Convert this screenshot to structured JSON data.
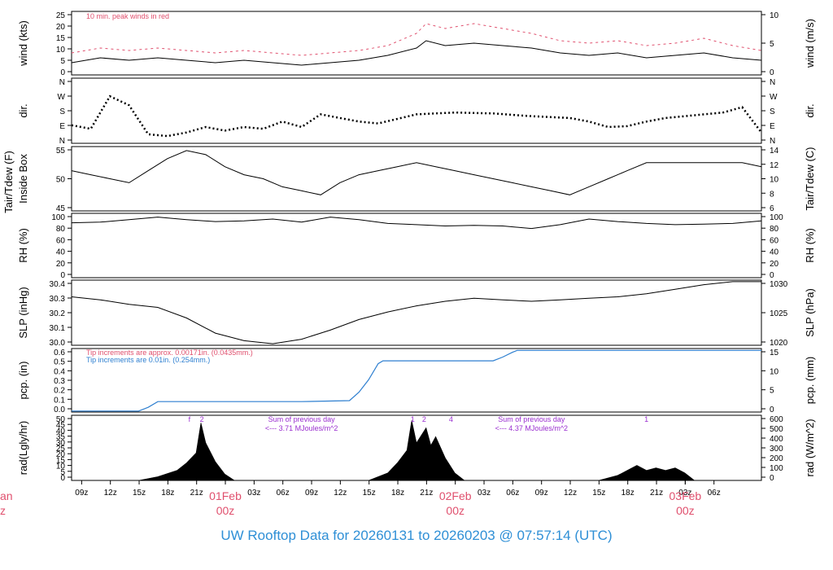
{
  "colors": {
    "axis": "#000000",
    "peak": "#e0506e",
    "precip_blue": "#2e7fd0",
    "solar_purple": "#9a2fd0",
    "date_red": "#e0506e",
    "caption_blue": "#2e8fd6",
    "trace": "#000000"
  },
  "caption": "UW Rooftop Data for 20260131  to  20260203 @ 07:57:14  (UTC)",
  "chart_data": {
    "type": "line",
    "x_unit": "hours",
    "x_start": "2026-01-31 07:57 UTC",
    "x_end": "2026-02-03 07:57 UTC",
    "x_ticks": [
      "09z",
      "12z",
      "15z",
      "18z",
      "21z",
      "03z",
      "06z",
      "09z",
      "12z",
      "15z",
      "18z",
      "21z",
      "03z",
      "06z",
      "09z",
      "12z",
      "15z",
      "18z",
      "21z",
      "03z",
      "06z"
    ],
    "day_labels": [
      {
        "date": "01Feb",
        "time": "00z"
      },
      {
        "date": "02Feb",
        "time": "00z"
      },
      {
        "date": "03Feb",
        "time": "00z"
      }
    ],
    "edge_label_left_top": "an",
    "edge_label_left_bottom": "z",
    "panels": [
      {
        "id": "wind",
        "ylabel_left": "wind (kts)",
        "ylabel_right": "wind (m/s)",
        "ylim": [
          0,
          26
        ],
        "left_ticks": [
          "0",
          "5",
          "10",
          "15",
          "20",
          "25"
        ],
        "right_ticks": [
          "0",
          "5",
          "10"
        ],
        "annotation": "10 min. peak winds in red",
        "series": [
          {
            "name": "wind",
            "x": [
              0,
              3,
              6,
              9,
              12,
              15,
              18,
              21,
              24,
              27,
              30,
              33,
              36,
              37,
              39,
              42,
              45,
              48,
              51,
              54,
              57,
              60,
              63,
              66,
              69,
              72
            ],
            "y": [
              5,
              7,
              6,
              7,
              6,
              5,
              6,
              5,
              4,
              5,
              6,
              8,
              11,
              14,
              12,
              13,
              12,
              11,
              9,
              8,
              9,
              7,
              8,
              9,
              7,
              6
            ]
          },
          {
            "name": "peak",
            "x": [
              0,
              3,
              6,
              9,
              12,
              15,
              18,
              21,
              24,
              27,
              30,
              33,
              36,
              37,
              39,
              42,
              45,
              48,
              51,
              54,
              57,
              60,
              63,
              66,
              69,
              72
            ],
            "y": [
              9,
              11,
              10,
              11,
              10,
              9,
              10,
              9,
              8,
              9,
              10,
              12,
              17,
              21,
              19,
              21,
              19,
              17,
              14,
              13,
              14,
              12,
              13,
              15,
              12,
              10
            ]
          }
        ]
      },
      {
        "id": "dir",
        "ylabel_left": "dir.",
        "ylabel_right": "dir.",
        "ylim": [
          0,
          360
        ],
        "left_ticks": [
          "N",
          "E",
          "S",
          "W",
          "N"
        ],
        "right_ticks": [
          "N",
          "E",
          "S",
          "W",
          "N"
        ],
        "series": [
          {
            "name": "direction",
            "x": [
              0,
              2,
              4,
              6,
              8,
              10,
              12,
              14,
              16,
              18,
              20,
              22,
              24,
              26,
              28,
              30,
              32,
              36,
              40,
              44,
              48,
              52,
              54,
              56,
              58,
              60,
              62,
              64,
              66,
              68,
              70,
              72
            ],
            "y": [
              100,
              80,
              260,
              210,
              50,
              40,
              60,
              90,
              70,
              90,
              80,
              120,
              90,
              160,
              140,
              120,
              110,
              160,
              170,
              165,
              150,
              140,
              120,
              90,
              95,
              120,
              140,
              150,
              160,
              170,
              200,
              60
            ]
          }
        ]
      },
      {
        "id": "temp",
        "ylabel_left": "Tair/Tdew (F)",
        "ylabel_left2": "Inside Box",
        "ylabel_right": "Tair/Tdew (C)",
        "ylim": [
          42,
          58
        ],
        "left_ticks": [
          "45",
          "50",
          "55"
        ],
        "right_ticks": [
          "6",
          "8",
          "10",
          "12",
          "14"
        ],
        "series": [
          {
            "name": "temperature",
            "x": [
              0,
              2,
              4,
              6,
              8,
              10,
              12,
              14,
              16,
              18,
              20,
              22,
              24,
              26,
              28,
              30,
              32,
              34,
              36,
              38,
              40,
              42,
              44,
              46,
              48,
              50,
              52,
              54,
              56,
              58,
              60,
              62,
              64,
              66,
              68,
              70,
              72
            ],
            "y": [
              52,
              51,
              50,
              49,
              52,
              55,
              57,
              56,
              53,
              51,
              50,
              48,
              47,
              46,
              49,
              51,
              52,
              53,
              54,
              53,
              52,
              51,
              50,
              49,
              48,
              47,
              46,
              48,
              50,
              52,
              54,
              54,
              54,
              54,
              54,
              54,
              53
            ]
          }
        ]
      },
      {
        "id": "rh",
        "ylabel_left": "RH (%)",
        "ylabel_right": "RH (%)",
        "ylim": [
          0,
          102
        ],
        "left_ticks": [
          "0",
          "20",
          "40",
          "60",
          "80",
          "100"
        ],
        "right_ticks": [
          "0",
          "20",
          "40",
          "60",
          "80",
          "100"
        ],
        "series": [
          {
            "name": "rh",
            "x": [
              0,
              3,
              6,
              9,
              12,
              15,
              18,
              21,
              24,
              27,
              30,
              33,
              36,
              39,
              42,
              45,
              48,
              51,
              54,
              57,
              60,
              63,
              66,
              69,
              72
            ],
            "y": [
              87,
              88,
              92,
              96,
              92,
              89,
              90,
              93,
              88,
              96,
              92,
              86,
              84,
              82,
              83,
              82,
              78,
              84,
              93,
              89,
              86,
              84,
              85,
              86,
              90
            ]
          }
        ]
      },
      {
        "id": "slp",
        "ylabel_left": "SLP (inHg)",
        "ylabel_right": "SLP (hPa)",
        "ylim": [
          29.99,
          30.42
        ],
        "left_ticks": [
          "30.0",
          "30.1",
          "30.2",
          "30.3",
          "30.4"
        ],
        "right_ticks": [
          "1020",
          "1025",
          "1030"
        ],
        "series": [
          {
            "name": "slp",
            "x": [
              0,
              3,
              6,
              9,
              12,
              15,
              18,
              21,
              24,
              27,
              30,
              33,
              36,
              39,
              42,
              45,
              48,
              51,
              54,
              57,
              60,
              63,
              66,
              69,
              72
            ],
            "y": [
              30.31,
              30.29,
              30.26,
              30.24,
              30.17,
              30.07,
              30.02,
              30.0,
              30.03,
              30.09,
              30.16,
              30.21,
              30.25,
              30.28,
              30.3,
              30.29,
              30.28,
              30.29,
              30.3,
              30.31,
              30.33,
              30.36,
              30.39,
              30.41,
              30.41
            ]
          }
        ]
      },
      {
        "id": "pcp",
        "ylabel_left": "pcp. (in)",
        "ylabel_right": "pcp. (mm)",
        "ylim": [
          -0.01,
          0.66
        ],
        "left_ticks": [
          "0.0",
          "0.1",
          "0.2",
          "0.3",
          "0.4",
          "0.5",
          "0.6"
        ],
        "right_ticks": [
          "0",
          "5",
          "10",
          "15"
        ],
        "notes": [
          "Tip increments are approx. 0.00171in. (0.0435mm.)",
          "Tip increments are 0.01in. (0.254mm.)"
        ],
        "series": [
          {
            "name": "precip",
            "x": [
              0,
              7,
              8,
              9,
              10,
              24,
              29,
              30,
              31,
              32,
              32.5,
              33,
              34,
              44,
              45,
              46,
              46.5,
              47,
              72
            ],
            "y": [
              0,
              0,
              0.04,
              0.1,
              0.1,
              0.1,
              0.11,
              0.2,
              0.33,
              0.5,
              0.53,
              0.53,
              0.53,
              0.53,
              0.57,
              0.62,
              0.64,
              0.64,
              0.64
            ]
          }
        ]
      },
      {
        "id": "rad",
        "ylabel_left": "rad(Lgly/hr)",
        "ylabel_right": "rad (W/m^2)",
        "ylim": [
          0,
          52
        ],
        "left_ticks": [
          "0",
          "5",
          "10",
          "15",
          "20",
          "25",
          "30",
          "35",
          "40",
          "45",
          "50"
        ],
        "right_ticks": [
          "0",
          "100",
          "200",
          "300",
          "400",
          "500",
          "600"
        ],
        "annotations": [
          {
            "text": "Sum of previous day",
            "text2": "<--- 3.71 MJoules/m^2"
          },
          {
            "text": "Sum of previous day",
            "text2": "<--- 4.37 MJoules/m^2"
          }
        ],
        "marks": [
          "f",
          "2",
          "1",
          "2",
          "4",
          "1"
        ],
        "series": [
          {
            "name": "solar",
            "x": [
              7,
              9,
              11,
              12,
              13,
              13.5,
              14,
              15,
              16,
              17,
              31,
              33,
              34,
              35,
              35.5,
              36,
              37,
              37.5,
              38,
              39,
              40,
              41,
              55,
              57,
              58,
              59,
              60,
              61,
              62,
              63,
              64,
              65
            ],
            "y": [
              0,
              3,
              8,
              14,
              22,
              46,
              30,
              15,
              5,
              0,
              0,
              6,
              14,
              24,
              48,
              30,
              42,
              28,
              35,
              18,
              6,
              0,
              0,
              4,
              8,
              12,
              8,
              10,
              8,
              10,
              6,
              0
            ]
          }
        ]
      }
    ]
  }
}
